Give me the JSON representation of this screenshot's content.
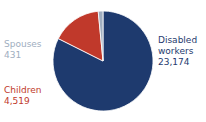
{
  "chart_data": {
    "type": "pie",
    "categories": [
      "Disabled workers",
      "Children",
      "Spouses"
    ],
    "values": [
      23174,
      4519,
      431
    ],
    "value_labels": [
      "23,174",
      "4,519",
      "431"
    ],
    "colors": [
      "#1e3a6e",
      "#c0392b",
      "#a0aec0"
    ],
    "data_labels": true
  }
}
